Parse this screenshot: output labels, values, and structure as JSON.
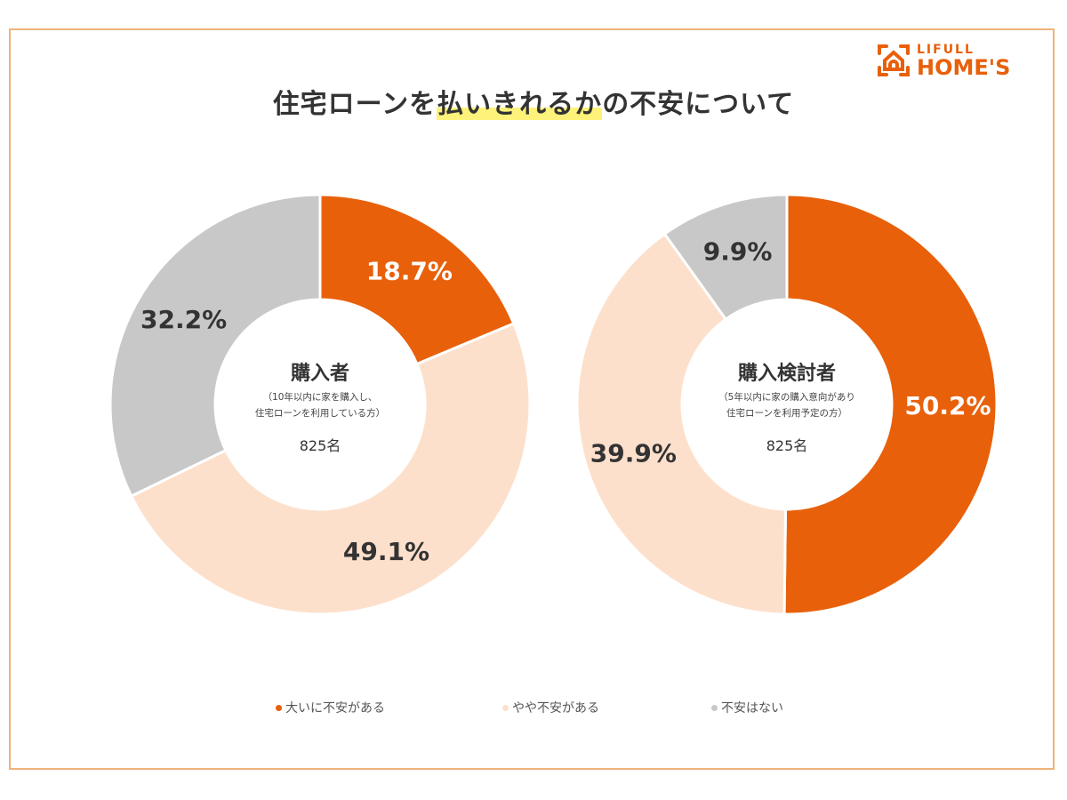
{
  "title_pre": "住宅ローンを",
  "title_highlight": "払いきれるか",
  "title_post": "の不安について",
  "logo": {
    "line1": "LIFULL",
    "line2": "HOME'S"
  },
  "colors": {
    "very_anxious": "#e8600a",
    "somewhat_anxious": "#fde0cc",
    "not_anxious": "#c8c8c8"
  },
  "chart_data": [
    {
      "type": "pie",
      "center_title": "購入者",
      "center_sub1": "（10年以内に家を購入し、",
      "center_sub2": "住宅ローンを利用している方）",
      "n": "825名",
      "categories": [
        "大いに不安がある",
        "やや不安がある",
        "不安はない"
      ],
      "values": [
        18.7,
        49.1,
        32.2
      ],
      "labels": [
        "18.7%",
        "49.1%",
        "32.2%"
      ]
    },
    {
      "type": "pie",
      "center_title": "購入検討者",
      "center_sub1": "（5年以内に家の購入意向があり",
      "center_sub2": "住宅ローンを利用予定の方）",
      "n": "825名",
      "categories": [
        "大いに不安がある",
        "やや不安がある",
        "不安はない"
      ],
      "values": [
        50.2,
        39.9,
        9.9
      ],
      "labels": [
        "50.2%",
        "39.9%",
        "9.9%"
      ]
    }
  ],
  "legend": [
    "大いに不安がある",
    "やや不安がある",
    "不安はない"
  ]
}
